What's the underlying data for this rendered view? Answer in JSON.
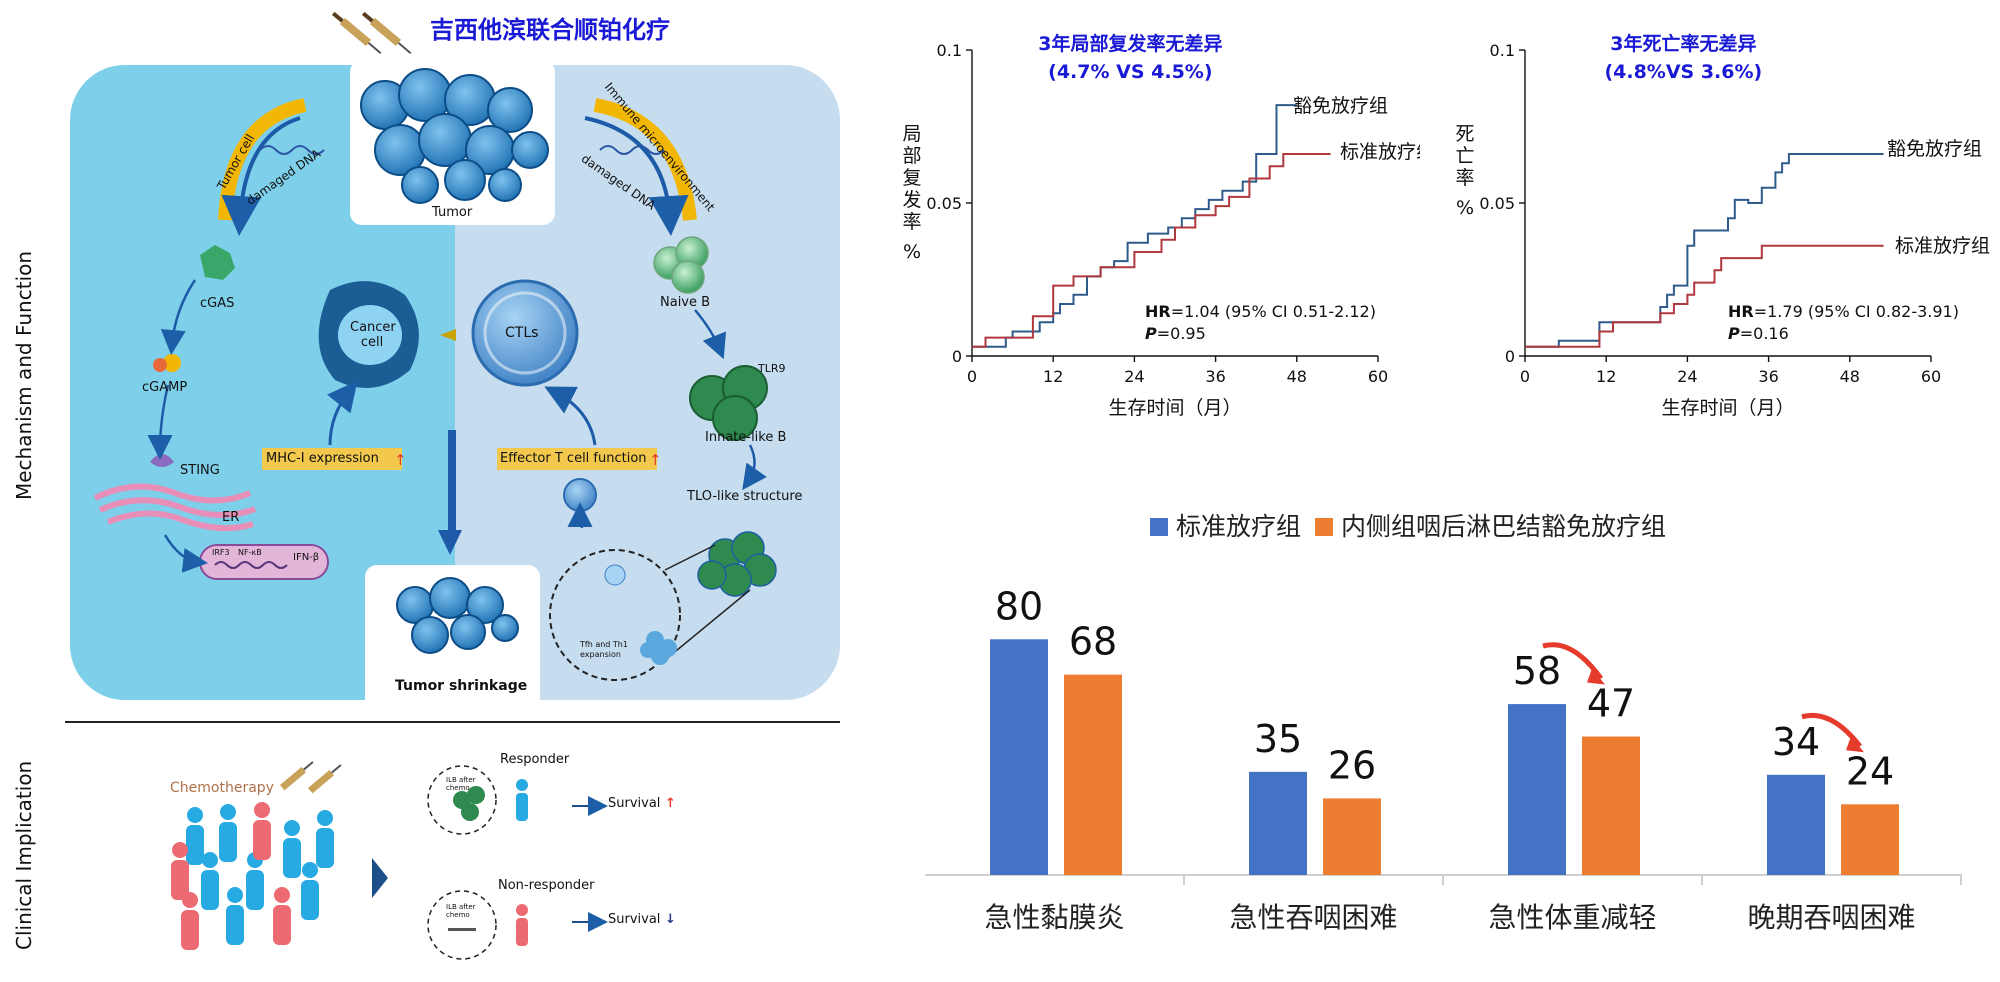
{
  "title": "吉西他滨联合顺铂化疗",
  "side_labels": {
    "top": "Mechanism and Function",
    "bottom": "Clinical Implication"
  },
  "mechanism": {
    "tumor": "Tumor",
    "tumor_cell": "Tumor cell",
    "immune_micro": "Immune microenvironment",
    "damaged_dna_left": "damaged DNA",
    "damaged_dna_right": "damaged DNA",
    "cgas": "cGAS",
    "cgamp": "cGAMP",
    "sting": "STING",
    "er": "ER",
    "irf3": "IRF3",
    "nfkb": "NF-κB",
    "ifnb": "IFN-β",
    "cancer_cell": "Cancer cell",
    "ctls": "CTLs",
    "mhc": "MHC-I expression",
    "effector": "Effector T cell function",
    "naive_b": "Naive B",
    "tlr9": "TLR9",
    "innate_b": "Innate-like B",
    "tlo": "TLO-like structure",
    "tfh": "Tfh and Th1 expansion",
    "shrinkage": "Tumor shrinkage"
  },
  "clinical": {
    "chemotherapy": "Chemotherapy",
    "responder": "Responder",
    "non_responder": "Non-responder",
    "survival_up": "Survival",
    "survival_down": "Survival",
    "ilb_after": "ILB after chemo"
  },
  "colors": {
    "left_panel": "#7ed0ea",
    "right_panel": "#c6dcef",
    "blue_series": "#4472c4",
    "orange_series": "#ed7d31",
    "km_blue": "#2f5b8a",
    "km_red": "#b0383f",
    "title_blue": "#1a1ad6",
    "arrow_red": "#e53b2c"
  },
  "chart_data": [
    {
      "type": "line",
      "title": "3年局部复发率无差异",
      "subtitle": "(4.7% VS 4.5%)",
      "xlabel": "生存时间（月）",
      "ylabel": "局部复发率 %",
      "xlim": [
        0,
        60
      ],
      "ylim": [
        0,
        0.1
      ],
      "xticks": [
        "0",
        "12",
        "24",
        "36",
        "48",
        "60"
      ],
      "yticks": [
        "0",
        "0.05",
        "0.1"
      ],
      "annotation_hr": "HR",
      "annotation_hr_value": "=1.04 (95% CI 0.51-2.12)",
      "annotation_p": "P",
      "annotation_p_value": "=0.95",
      "series": [
        {
          "name": "豁免放疗组",
          "x": [
            0,
            5,
            5,
            6,
            6,
            10,
            10,
            12,
            12,
            13,
            13,
            15,
            15,
            17,
            17,
            19,
            19,
            21,
            21,
            23,
            23,
            26,
            26,
            29,
            29,
            31,
            31,
            33,
            33,
            35,
            35,
            37,
            37,
            40,
            40,
            42,
            42,
            45,
            45,
            48
          ],
          "y": [
            0.003,
            0.003,
            0.006,
            0.006,
            0.008,
            0.008,
            0.011,
            0.011,
            0.014,
            0.014,
            0.017,
            0.017,
            0.02,
            0.02,
            0.026,
            0.026,
            0.029,
            0.029,
            0.031,
            0.031,
            0.037,
            0.037,
            0.04,
            0.04,
            0.042,
            0.042,
            0.045,
            0.045,
            0.048,
            0.048,
            0.051,
            0.051,
            0.054,
            0.054,
            0.057,
            0.057,
            0.066,
            0.066,
            0.082,
            0.082
          ]
        },
        {
          "name": "标准放疗组",
          "x": [
            0,
            2,
            2,
            9,
            9,
            12,
            12,
            15,
            15,
            19,
            19,
            24,
            24,
            28,
            28,
            30,
            30,
            33,
            33,
            36,
            36,
            38,
            38,
            41,
            41,
            44,
            44,
            46,
            46,
            53
          ],
          "y": [
            0.003,
            0.003,
            0.006,
            0.006,
            0.013,
            0.013,
            0.023,
            0.023,
            0.026,
            0.026,
            0.029,
            0.029,
            0.034,
            0.034,
            0.038,
            0.038,
            0.042,
            0.042,
            0.046,
            0.046,
            0.049,
            0.049,
            0.052,
            0.052,
            0.058,
            0.058,
            0.062,
            0.062,
            0.066,
            0.066
          ]
        }
      ]
    },
    {
      "type": "line",
      "title": "3年死亡率无差异",
      "subtitle": "(4.8%VS 3.6%)",
      "xlabel": "生存时间（月）",
      "ylabel": "死亡率 %",
      "xlim": [
        0,
        60
      ],
      "ylim": [
        0,
        0.1
      ],
      "xticks": [
        "0",
        "12",
        "24",
        "36",
        "48",
        "60"
      ],
      "yticks": [
        "0",
        "0.05",
        "0.1"
      ],
      "annotation_hr": "HR",
      "annotation_hr_value": "=1.79 (95% CI 0.82-3.91)",
      "annotation_p": "P",
      "annotation_p_value": "=0.16",
      "series": [
        {
          "name": "豁免放疗组",
          "x": [
            0,
            5,
            5,
            11,
            11,
            20,
            20,
            21,
            21,
            22,
            22,
            24,
            24,
            25,
            25,
            30,
            30,
            31,
            31,
            33,
            33,
            35,
            35,
            37,
            37,
            38,
            38,
            39,
            39,
            40,
            40,
            41,
            41,
            53
          ],
          "y": [
            0.003,
            0.003,
            0.005,
            0.005,
            0.011,
            0.011,
            0.016,
            0.016,
            0.02,
            0.02,
            0.023,
            0.023,
            0.036,
            0.036,
            0.041,
            0.041,
            0.045,
            0.045,
            0.051,
            0.051,
            0.05,
            0.05,
            0.055,
            0.055,
            0.06,
            0.06,
            0.063,
            0.063,
            0.066,
            0.066,
            0.066,
            0.066,
            0.066,
            0.066
          ]
        },
        {
          "name": "标准放疗组",
          "x": [
            0,
            2,
            2,
            11,
            11,
            13,
            13,
            20,
            20,
            22,
            22,
            24,
            24,
            25,
            25,
            28,
            28,
            29,
            29,
            35,
            35,
            53
          ],
          "y": [
            0.003,
            0.003,
            0.003,
            0.003,
            0.008,
            0.008,
            0.011,
            0.011,
            0.014,
            0.014,
            0.017,
            0.017,
            0.02,
            0.02,
            0.024,
            0.024,
            0.028,
            0.028,
            0.032,
            0.032,
            0.036,
            0.036
          ]
        }
      ]
    },
    {
      "type": "bar",
      "categories": [
        "急性黏膜炎",
        "急性吞咽困难",
        "急性体重减轻",
        "晚期吞咽困难"
      ],
      "series": [
        {
          "name": "标准放疗组",
          "values": [
            80,
            35,
            58,
            34
          ],
          "labels": [
            "80",
            "35",
            "58",
            "34"
          ]
        },
        {
          "name": "内侧组咽后淋巴结豁免放疗组",
          "values": [
            68,
            26,
            47,
            24
          ],
          "labels": [
            "68",
            "26",
            "47",
            "24"
          ]
        }
      ],
      "ylim": [
        0,
        90
      ],
      "legend": "top"
    }
  ]
}
